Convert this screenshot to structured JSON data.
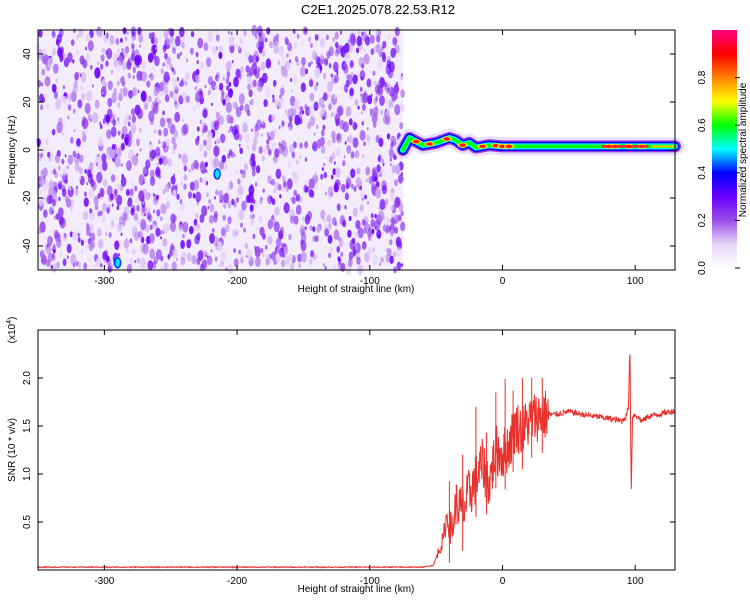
{
  "page_title": "C2E1.2025.078.22.53.R12",
  "chart_data": [
    {
      "type": "heatmap",
      "title": "C2E1.2025.078.22.53.R12",
      "xlabel": "Height of straight line (km)",
      "ylabel": "Frequency (Hz)",
      "xlim": [
        -350,
        130
      ],
      "ylim": [
        -50,
        50
      ],
      "x_ticks": [
        -300,
        -200,
        -100,
        0,
        100
      ],
      "y_ticks": [
        -40,
        -20,
        0,
        20,
        40
      ],
      "colorbar": {
        "label": "Normalized spectral amplitude",
        "range": [
          0.0,
          1.0
        ],
        "ticks": [
          0.0,
          0.2,
          0.4,
          0.6,
          0.8
        ],
        "colormap": [
          "#ffffff",
          "#e6d6f8",
          "#9b4de8",
          "#6a00ff",
          "#0000ff",
          "#00ffff",
          "#00ff00",
          "#ffff00",
          "#ff8000",
          "#ff0000",
          "#ff0080"
        ]
      },
      "noise_region_x": [
        -350,
        -75
      ],
      "signal_line": {
        "x": [
          -75,
          -70,
          -60,
          -50,
          -40,
          -35,
          -30,
          -25,
          -20,
          -10,
          0,
          20,
          60,
          100,
          130
        ],
        "y": [
          0,
          5,
          2,
          3,
          5,
          4,
          2,
          3,
          1,
          2,
          1.5,
          1.5,
          1.5,
          1.5,
          1.5
        ],
        "peaks_x": [
          -65,
          -55,
          -42,
          -30,
          -15,
          -5,
          0,
          5,
          80,
          85,
          95,
          105
        ]
      },
      "grid": false
    },
    {
      "type": "line",
      "title": "",
      "xlabel": "Height of straight line (km)",
      "ylabel": "SNR (10 * v/v)",
      "y_multiplier_label": "(x10",
      "y_multiplier_exp": "4",
      "xlim": [
        -350,
        130
      ],
      "ylim": [
        0,
        2.5
      ],
      "x_ticks": [
        -300,
        -200,
        -100,
        0,
        100
      ],
      "y_ticks": [
        0.5,
        1.0,
        1.5,
        2.0
      ],
      "y_tick_labels": [
        "0.5",
        "1.0",
        "1.5",
        "2.0"
      ],
      "series": [
        {
          "color": "#e8302c",
          "x": [
            -350,
            -300,
            -250,
            -200,
            -150,
            -100,
            -60,
            -52,
            -48,
            -45,
            -42,
            -38,
            -35,
            -30,
            -25,
            -20,
            -15,
            -10,
            -5,
            0,
            5,
            10,
            15,
            20,
            25,
            30,
            40,
            50,
            60,
            70,
            80,
            90,
            93,
            95,
            96,
            97,
            98,
            100,
            105,
            110,
            120,
            130
          ],
          "y": [
            0.03,
            0.03,
            0.03,
            0.03,
            0.03,
            0.03,
            0.03,
            0.05,
            0.2,
            0.3,
            0.55,
            0.4,
            0.7,
            0.6,
            0.8,
            0.95,
            1.1,
            0.9,
            1.25,
            1.2,
            1.3,
            1.5,
            1.45,
            1.55,
            1.6,
            1.62,
            1.62,
            1.65,
            1.62,
            1.6,
            1.58,
            1.55,
            1.6,
            1.7,
            2.4,
            0.8,
            1.6,
            1.62,
            1.55,
            1.6,
            1.63,
            1.66
          ]
        }
      ],
      "spikes_x": [
        -40,
        -30,
        -20,
        -12,
        -5,
        2,
        8,
        15,
        22,
        30
      ],
      "grid": false
    }
  ]
}
